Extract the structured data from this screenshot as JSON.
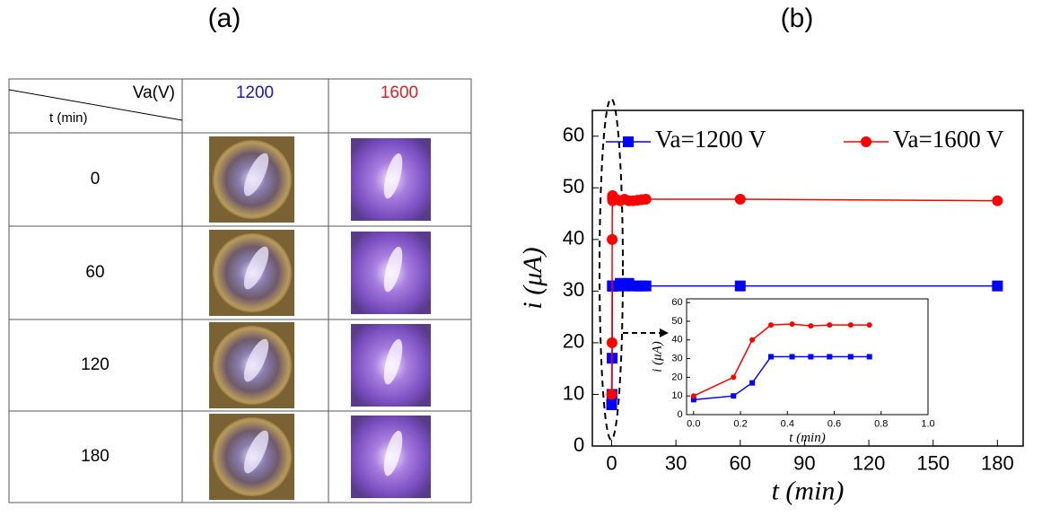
{
  "figure": {
    "label_a": "(a)",
    "label_b": "(b)"
  },
  "table": {
    "corner_top": "Va(V)",
    "corner_bottom": "t (min)",
    "columns": [
      "1200",
      "1600"
    ],
    "rows": [
      "0",
      "60",
      "120",
      "180"
    ]
  },
  "chart_data": [
    {
      "type": "line",
      "xlabel": "t (min)",
      "ylabel": "i (μA)",
      "x": [
        0,
        0.17,
        0.25,
        0.33,
        0.42,
        0.5,
        0.58,
        0.67,
        0.75,
        2,
        4,
        6,
        8,
        10,
        12,
        14,
        16,
        60,
        180
      ],
      "series": [
        {
          "name": "Va=1200 V",
          "color": "#0000ff",
          "marker": "square",
          "values": [
            8,
            10,
            17,
            31,
            31,
            31,
            31,
            31,
            31,
            31,
            31.5,
            31,
            31.5,
            31,
            31,
            31,
            31,
            31,
            31
          ]
        },
        {
          "name": "Va=1600 V",
          "color": "#ff0000",
          "marker": "circle",
          "values": [
            10,
            20,
            40,
            48,
            48.5,
            47.5,
            48,
            48,
            48,
            47.8,
            47.5,
            47.8,
            47.5,
            47.5,
            47.6,
            47.7,
            47.8,
            47.8,
            47.5
          ]
        }
      ],
      "xlim": [
        -9,
        192
      ],
      "ylim": [
        0,
        65
      ],
      "xticks": [
        0,
        30,
        60,
        90,
        120,
        150,
        180
      ],
      "yticks": [
        0,
        10,
        20,
        30,
        40,
        50,
        60
      ],
      "legend": "top"
    },
    {
      "type": "line",
      "xlabel": "t (min)",
      "ylabel": "i (μA)",
      "x": [
        0,
        0.17,
        0.25,
        0.33,
        0.42,
        0.5,
        0.58,
        0.67,
        0.75
      ],
      "series": [
        {
          "color": "#0000ff",
          "marker": "square",
          "values": [
            8,
            10,
            17,
            31,
            31,
            31,
            31,
            31,
            31
          ]
        },
        {
          "color": "#ff0000",
          "marker": "circle",
          "values": [
            10,
            20,
            40,
            48,
            48.5,
            47.5,
            48,
            48,
            48
          ]
        }
      ],
      "xlim": [
        -0.03,
        1.0
      ],
      "ylim": [
        0,
        62
      ],
      "xticks": [
        {
          "value": 0,
          "label": "0.0"
        },
        0.2,
        0.4,
        0.6,
        0.8,
        {
          "value": 1,
          "label": "1.0"
        }
      ],
      "yticks": [
        0,
        10,
        20,
        30,
        40,
        50,
        60
      ]
    }
  ]
}
